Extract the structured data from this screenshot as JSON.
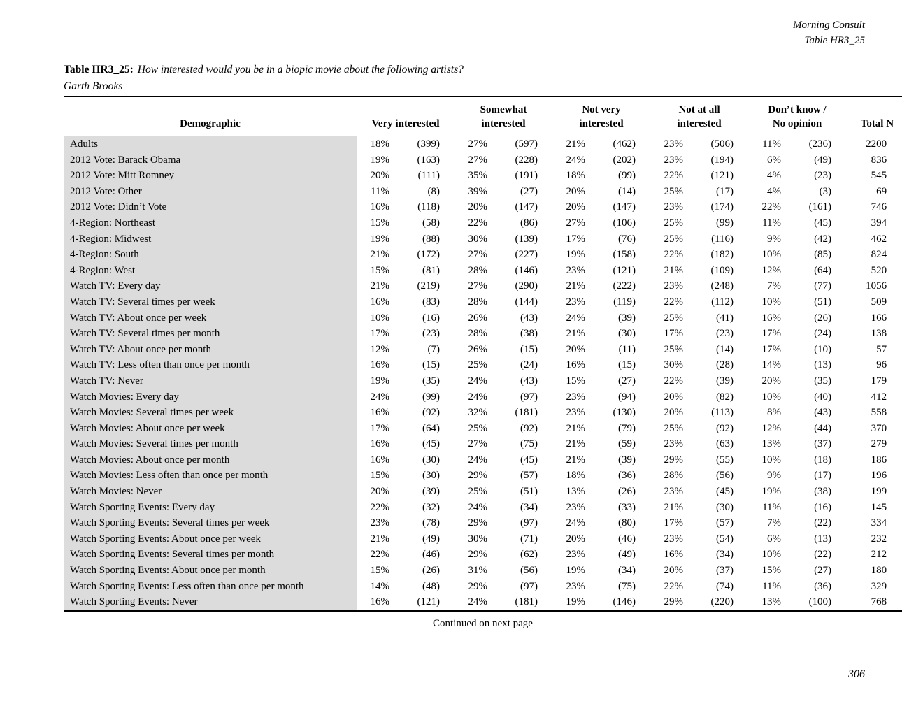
{
  "colors": {
    "row_label_bg": "#dcdcdc",
    "text": "#000000"
  },
  "page": {
    "header_source": "Morning Consult",
    "header_table_ref": "Table HR3_25",
    "title_label": "Table HR3_25:",
    "title_question": "How interested would you be in a biopic movie about the following artists?",
    "title_subject": "Garth Brooks",
    "footer_note": "Continued on next page",
    "page_number": "306"
  },
  "table": {
    "header": {
      "demographic": "Demographic",
      "groups": [
        [
          "Very interested"
        ],
        [
          "Somewhat",
          "interested"
        ],
        [
          "Not very",
          "interested"
        ],
        [
          "Not at all",
          "interested"
        ],
        [
          "Don’t know /",
          "No opinion"
        ]
      ],
      "total": "Total N"
    },
    "rows": [
      {
        "label": "Adults",
        "values": [
          "18%",
          "(399)",
          "27%",
          "(597)",
          "21%",
          "(462)",
          "23%",
          "(506)",
          "11%",
          "(236)",
          "2200"
        ]
      },
      {
        "label": "2012 Vote: Barack Obama",
        "values": [
          "19%",
          "(163)",
          "27%",
          "(228)",
          "24%",
          "(202)",
          "23%",
          "(194)",
          "6%",
          "(49)",
          "836"
        ]
      },
      {
        "label": "2012 Vote: Mitt Romney",
        "values": [
          "20%",
          "(111)",
          "35%",
          "(191)",
          "18%",
          "(99)",
          "22%",
          "(121)",
          "4%",
          "(23)",
          "545"
        ]
      },
      {
        "label": "2012 Vote: Other",
        "values": [
          "11%",
          "(8)",
          "39%",
          "(27)",
          "20%",
          "(14)",
          "25%",
          "(17)",
          "4%",
          "(3)",
          "69"
        ]
      },
      {
        "label": "2012 Vote: Didn’t Vote",
        "values": [
          "16%",
          "(118)",
          "20%",
          "(147)",
          "20%",
          "(147)",
          "23%",
          "(174)",
          "22%",
          "(161)",
          "746"
        ]
      },
      {
        "label": "4-Region: Northeast",
        "values": [
          "15%",
          "(58)",
          "22%",
          "(86)",
          "27%",
          "(106)",
          "25%",
          "(99)",
          "11%",
          "(45)",
          "394"
        ]
      },
      {
        "label": "4-Region: Midwest",
        "values": [
          "19%",
          "(88)",
          "30%",
          "(139)",
          "17%",
          "(76)",
          "25%",
          "(116)",
          "9%",
          "(42)",
          "462"
        ]
      },
      {
        "label": "4-Region: South",
        "values": [
          "21%",
          "(172)",
          "27%",
          "(227)",
          "19%",
          "(158)",
          "22%",
          "(182)",
          "10%",
          "(85)",
          "824"
        ]
      },
      {
        "label": "4-Region: West",
        "values": [
          "15%",
          "(81)",
          "28%",
          "(146)",
          "23%",
          "(121)",
          "21%",
          "(109)",
          "12%",
          "(64)",
          "520"
        ]
      },
      {
        "label": "Watch TV: Every day",
        "values": [
          "21%",
          "(219)",
          "27%",
          "(290)",
          "21%",
          "(222)",
          "23%",
          "(248)",
          "7%",
          "(77)",
          "1056"
        ]
      },
      {
        "label": "Watch TV: Several times per week",
        "values": [
          "16%",
          "(83)",
          "28%",
          "(144)",
          "23%",
          "(119)",
          "22%",
          "(112)",
          "10%",
          "(51)",
          "509"
        ]
      },
      {
        "label": "Watch TV: About once per week",
        "values": [
          "10%",
          "(16)",
          "26%",
          "(43)",
          "24%",
          "(39)",
          "25%",
          "(41)",
          "16%",
          "(26)",
          "166"
        ]
      },
      {
        "label": "Watch TV: Several times per month",
        "values": [
          "17%",
          "(23)",
          "28%",
          "(38)",
          "21%",
          "(30)",
          "17%",
          "(23)",
          "17%",
          "(24)",
          "138"
        ]
      },
      {
        "label": "Watch TV: About once per month",
        "values": [
          "12%",
          "(7)",
          "26%",
          "(15)",
          "20%",
          "(11)",
          "25%",
          "(14)",
          "17%",
          "(10)",
          "57"
        ]
      },
      {
        "label": "Watch TV: Less often than once per month",
        "values": [
          "16%",
          "(15)",
          "25%",
          "(24)",
          "16%",
          "(15)",
          "30%",
          "(28)",
          "14%",
          "(13)",
          "96"
        ]
      },
      {
        "label": "Watch TV: Never",
        "values": [
          "19%",
          "(35)",
          "24%",
          "(43)",
          "15%",
          "(27)",
          "22%",
          "(39)",
          "20%",
          "(35)",
          "179"
        ]
      },
      {
        "label": "Watch Movies: Every day",
        "values": [
          "24%",
          "(99)",
          "24%",
          "(97)",
          "23%",
          "(94)",
          "20%",
          "(82)",
          "10%",
          "(40)",
          "412"
        ]
      },
      {
        "label": "Watch Movies: Several times per week",
        "values": [
          "16%",
          "(92)",
          "32%",
          "(181)",
          "23%",
          "(130)",
          "20%",
          "(113)",
          "8%",
          "(43)",
          "558"
        ]
      },
      {
        "label": "Watch Movies: About once per week",
        "values": [
          "17%",
          "(64)",
          "25%",
          "(92)",
          "21%",
          "(79)",
          "25%",
          "(92)",
          "12%",
          "(44)",
          "370"
        ]
      },
      {
        "label": "Watch Movies: Several times per month",
        "values": [
          "16%",
          "(45)",
          "27%",
          "(75)",
          "21%",
          "(59)",
          "23%",
          "(63)",
          "13%",
          "(37)",
          "279"
        ]
      },
      {
        "label": "Watch Movies: About once per month",
        "values": [
          "16%",
          "(30)",
          "24%",
          "(45)",
          "21%",
          "(39)",
          "29%",
          "(55)",
          "10%",
          "(18)",
          "186"
        ]
      },
      {
        "label": "Watch Movies: Less often than once per month",
        "values": [
          "15%",
          "(30)",
          "29%",
          "(57)",
          "18%",
          "(36)",
          "28%",
          "(56)",
          "9%",
          "(17)",
          "196"
        ]
      },
      {
        "label": "Watch Movies: Never",
        "values": [
          "20%",
          "(39)",
          "25%",
          "(51)",
          "13%",
          "(26)",
          "23%",
          "(45)",
          "19%",
          "(38)",
          "199"
        ]
      },
      {
        "label": "Watch Sporting Events: Every day",
        "values": [
          "22%",
          "(32)",
          "24%",
          "(34)",
          "23%",
          "(33)",
          "21%",
          "(30)",
          "11%",
          "(16)",
          "145"
        ]
      },
      {
        "label": "Watch Sporting Events: Several times per week",
        "values": [
          "23%",
          "(78)",
          "29%",
          "(97)",
          "24%",
          "(80)",
          "17%",
          "(57)",
          "7%",
          "(22)",
          "334"
        ]
      },
      {
        "label": "Watch Sporting Events: About once per week",
        "values": [
          "21%",
          "(49)",
          "30%",
          "(71)",
          "20%",
          "(46)",
          "23%",
          "(54)",
          "6%",
          "(13)",
          "232"
        ]
      },
      {
        "label": "Watch Sporting Events: Several times per month",
        "values": [
          "22%",
          "(46)",
          "29%",
          "(62)",
          "23%",
          "(49)",
          "16%",
          "(34)",
          "10%",
          "(22)",
          "212"
        ]
      },
      {
        "label": "Watch Sporting Events: About once per month",
        "values": [
          "15%",
          "(26)",
          "31%",
          "(56)",
          "19%",
          "(34)",
          "20%",
          "(37)",
          "15%",
          "(27)",
          "180"
        ]
      },
      {
        "label": "Watch Sporting Events: Less often than once per month",
        "values": [
          "14%",
          "(48)",
          "29%",
          "(97)",
          "23%",
          "(75)",
          "22%",
          "(74)",
          "11%",
          "(36)",
          "329"
        ]
      },
      {
        "label": "Watch Sporting Events: Never",
        "values": [
          "16%",
          "(121)",
          "24%",
          "(181)",
          "19%",
          "(146)",
          "29%",
          "(220)",
          "13%",
          "(100)",
          "768"
        ]
      }
    ]
  }
}
